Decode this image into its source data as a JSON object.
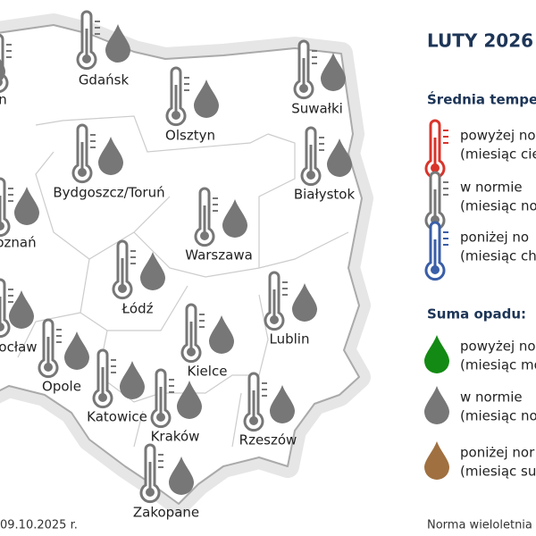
{
  "map": {
    "cities": [
      "n",
      "Gdańsk",
      "Olsztyn",
      "Suwałki",
      "Bydgoszcz/Toruń",
      "Białystok",
      "oznań",
      "Warszawa",
      "Łódź",
      "Lublin",
      "ocław",
      "Opole",
      "Kielce",
      "Katowice",
      "Kraków",
      "Rzeszów",
      "Zakopane"
    ],
    "date": "09.10.2025 r."
  },
  "legend": {
    "title": "LUTY 2026",
    "temperature_title": "Średnia tempe",
    "temperature_items": [
      [
        "powyżej no",
        "(miesiąc cie"
      ],
      [
        "w normie",
        "(miesiąc no"
      ],
      [
        "poniżej no",
        "(miesiąc ch"
      ]
    ],
    "precipitation_title": "Suma opadu:",
    "precipitation_items": [
      [
        "powyżej no",
        "(miesiąc mo"
      ],
      [
        "w normie",
        "(miesiąc no"
      ],
      [
        "poniżej nor",
        "(miesiąc su"
      ]
    ],
    "footer": "Norma wieloletnia"
  }
}
